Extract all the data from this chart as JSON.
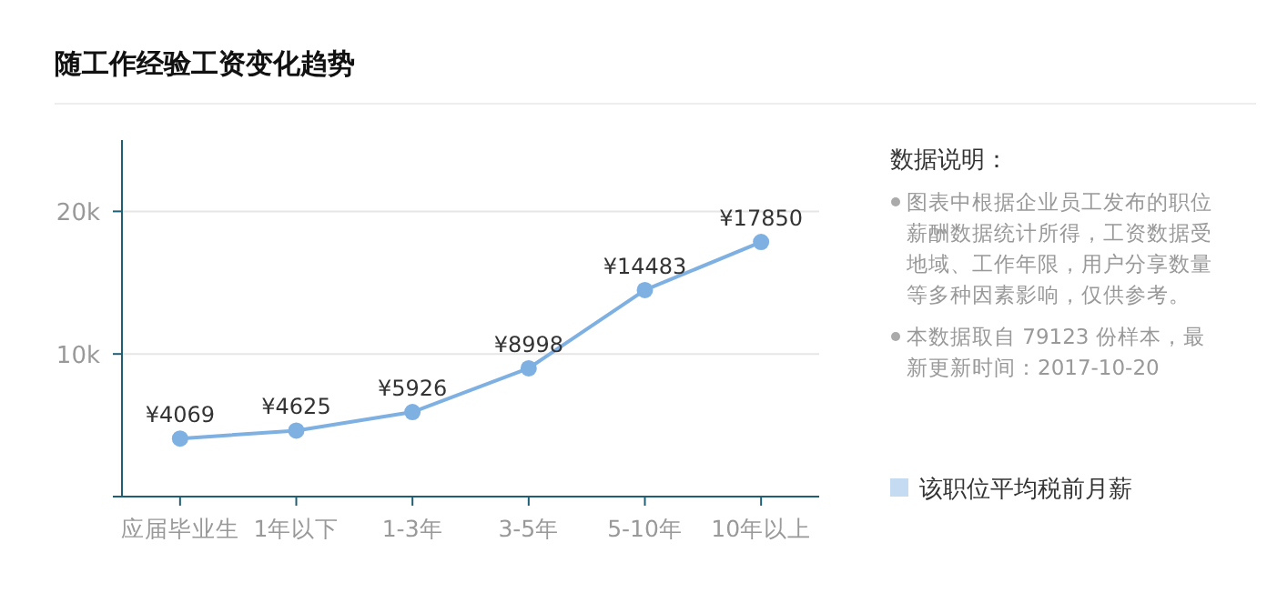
{
  "chart_data": {
    "type": "line",
    "title": "随工作经验工资变化趋势",
    "categories": [
      "应届毕业生",
      "1年以下",
      "1-3年",
      "3-5年",
      "5-10年",
      "10年以上"
    ],
    "series": [
      {
        "name": "该职位平均税前月薪",
        "color": "#7fb0e2",
        "values": [
          4069,
          4625,
          5926,
          8998,
          14483,
          17850
        ],
        "value_labels": [
          "¥4069",
          "¥4625",
          "¥5926",
          "¥8998",
          "¥14483",
          "¥17850"
        ]
      }
    ],
    "ylim": [
      0,
      25000
    ],
    "yticks": [
      {
        "value": 0,
        "label": null
      },
      {
        "value": 10000,
        "label": "10k"
      },
      {
        "value": 20000,
        "label": "20k"
      }
    ],
    "grid": "y",
    "marker": "circle",
    "legend": "right",
    "annotations": [
      "数据说明：",
      "图表中根据企业员工发布的职位薪酬数据统计所得，工资数据受地域、工作年限，用户分享数量等多种因素影响，仅供参考。",
      "本数据取自 79123 份样本，最新更新时间：2017-10-20"
    ]
  }
}
